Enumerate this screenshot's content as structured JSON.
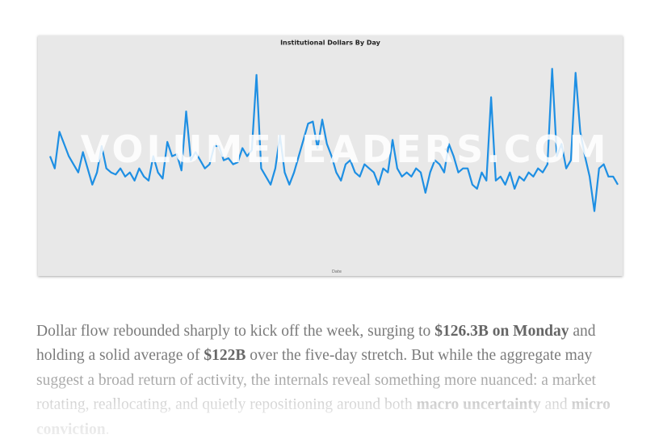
{
  "chart": {
    "chart_data": {
      "type": "line",
      "title": "Institutional Dollars By Day",
      "x_label": "Date",
      "watermark": "VOLUMELEADERS.COM",
      "color": "#1e8fe3",
      "ylim": [
        0,
        100
      ],
      "values": [
        47,
        41,
        59,
        53,
        47,
        43,
        39,
        49,
        41,
        33,
        39,
        52,
        41,
        39,
        38,
        41,
        37,
        39,
        35,
        41,
        37,
        35,
        47,
        39,
        36,
        54,
        47,
        48,
        40,
        69,
        45,
        49,
        45,
        41,
        43,
        52,
        52,
        45,
        46,
        43,
        44,
        51,
        47,
        50,
        87,
        41,
        37,
        33,
        41,
        57,
        39,
        33,
        39,
        47,
        55,
        63,
        64,
        51,
        65,
        53,
        47,
        39,
        35,
        43,
        45,
        39,
        37,
        43,
        41,
        39,
        33,
        41,
        39,
        55,
        41,
        37,
        39,
        37,
        41,
        39,
        29,
        39,
        45,
        43,
        39,
        53,
        47,
        39,
        41,
        41,
        33,
        31,
        39,
        35,
        76,
        35,
        37,
        33,
        39,
        31,
        37,
        35,
        39,
        37,
        41,
        39,
        43,
        90,
        47,
        53,
        41,
        45,
        88,
        59,
        47,
        37,
        20,
        41,
        43,
        37,
        37,
        33
      ]
    }
  },
  "article": {
    "paragraph": [
      {
        "text": "Dollar flow rebounded sharply to kick off the week, surging to ",
        "bold": false
      },
      {
        "text": "$126.3B on Monday",
        "bold": true
      },
      {
        "text": " and holding a solid average of ",
        "bold": false
      },
      {
        "text": "$122B",
        "bold": true
      },
      {
        "text": " over the five-day stretch. But while the aggregate may suggest a broad return of activity, the internals reveal something more nuanced: a market rotating, reallocating, and quietly repositioning around both ",
        "bold": false
      },
      {
        "text": "macro uncertainty",
        "bold": true
      },
      {
        "text": " and ",
        "bold": false
      },
      {
        "text": "micro conviction",
        "bold": true
      },
      {
        "text": ".",
        "bold": false
      }
    ]
  }
}
